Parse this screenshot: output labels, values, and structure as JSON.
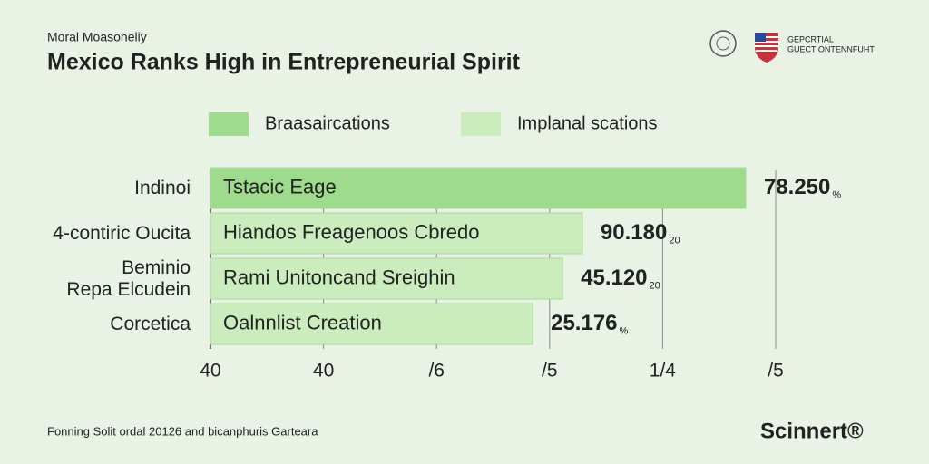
{
  "chart_data": {
    "type": "bar",
    "orientation": "horizontal",
    "subtitle": "Moral Moasoneliy",
    "title": "Mexico Ranks High in Entrepreneurial Spirit",
    "header_right": [
      "GEPCRTIAL",
      "GUECT ONTENNFUHT"
    ],
    "legend": [
      {
        "name": "Braasaircations",
        "color": "#9edb8c"
      },
      {
        "name": "Implanal scations",
        "color": "#cbecbd"
      }
    ],
    "categories": [
      "Indinoi",
      "4-contiric Oucita",
      "Beminio\nRepa Elcudein",
      "Corcetica"
    ],
    "bar_texts": [
      "Tstacic Eage",
      "Hiandos Freagenoos Cbredo",
      "Rami  Unitoncand Sreighin",
      "Oalnnlist Creation"
    ],
    "values": [
      94.7,
      65.8,
      62.3,
      57
    ],
    "colors": [
      "#9edb8c",
      "#cbecbd",
      "#cbecbd",
      "#cbecbd"
    ],
    "bar_notes": [
      "78.250",
      "90.180",
      "45.120",
      "25.176"
    ],
    "bar_note_suffixes": [
      "%",
      "20",
      "20",
      "%"
    ],
    "xlim": [
      0,
      100
    ],
    "xticks": [
      {
        "value": 0,
        "label": "40"
      },
      {
        "value": 20,
        "label": "40"
      },
      {
        "value": 40,
        "label": "/6"
      },
      {
        "value": 60,
        "label": "/5"
      },
      {
        "value": 80,
        "label": "1/4"
      },
      {
        "value": 100,
        "label": "/5"
      }
    ],
    "grid": true,
    "footer": "Fonning Solit ordal 20126 and bicanphuris Garteara",
    "logo": "Scinnert®"
  }
}
